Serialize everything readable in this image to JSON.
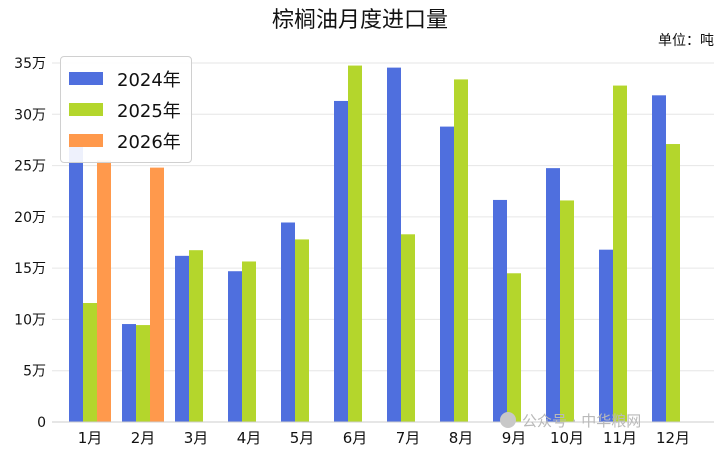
{
  "chart_data": {
    "type": "bar",
    "title": "棕榈油月度进口量",
    "unit_label": "单位：吨",
    "categories": [
      "1月",
      "2月",
      "3月",
      "4月",
      "5月",
      "6月",
      "7月",
      "8月",
      "9月",
      "10月",
      "11月",
      "12月"
    ],
    "series": [
      {
        "name": "2024年",
        "color": "#4f6fde",
        "values": [
          280000,
          95500,
          162000,
          147000,
          194500,
          313000,
          345500,
          288000,
          216500,
          247500,
          168000,
          318500
        ]
      },
      {
        "name": "2025年",
        "color": "#b4d62c",
        "values": [
          116000,
          94500,
          167500,
          156500,
          178000,
          347500,
          183000,
          334000,
          145000,
          216000,
          328000,
          271000
        ]
      },
      {
        "name": "2026年",
        "color": "#ff994c",
        "values": [
          255000,
          248000,
          null,
          null,
          null,
          null,
          null,
          null,
          null,
          null,
          null,
          null
        ]
      }
    ],
    "ylim": [
      0,
      350000
    ],
    "yticks": [
      0,
      50000,
      100000,
      150000,
      200000,
      250000,
      300000,
      350000
    ],
    "ytick_labels": [
      "0",
      "5万",
      "10万",
      "15万",
      "20万",
      "25万",
      "30万",
      "35万"
    ],
    "xlabel": "",
    "ylabel": "",
    "grid": "horizontal",
    "legend_position": "top-left"
  },
  "watermark": {
    "text": "公众号 · 中华粮网",
    "icon": "wechat-icon"
  }
}
